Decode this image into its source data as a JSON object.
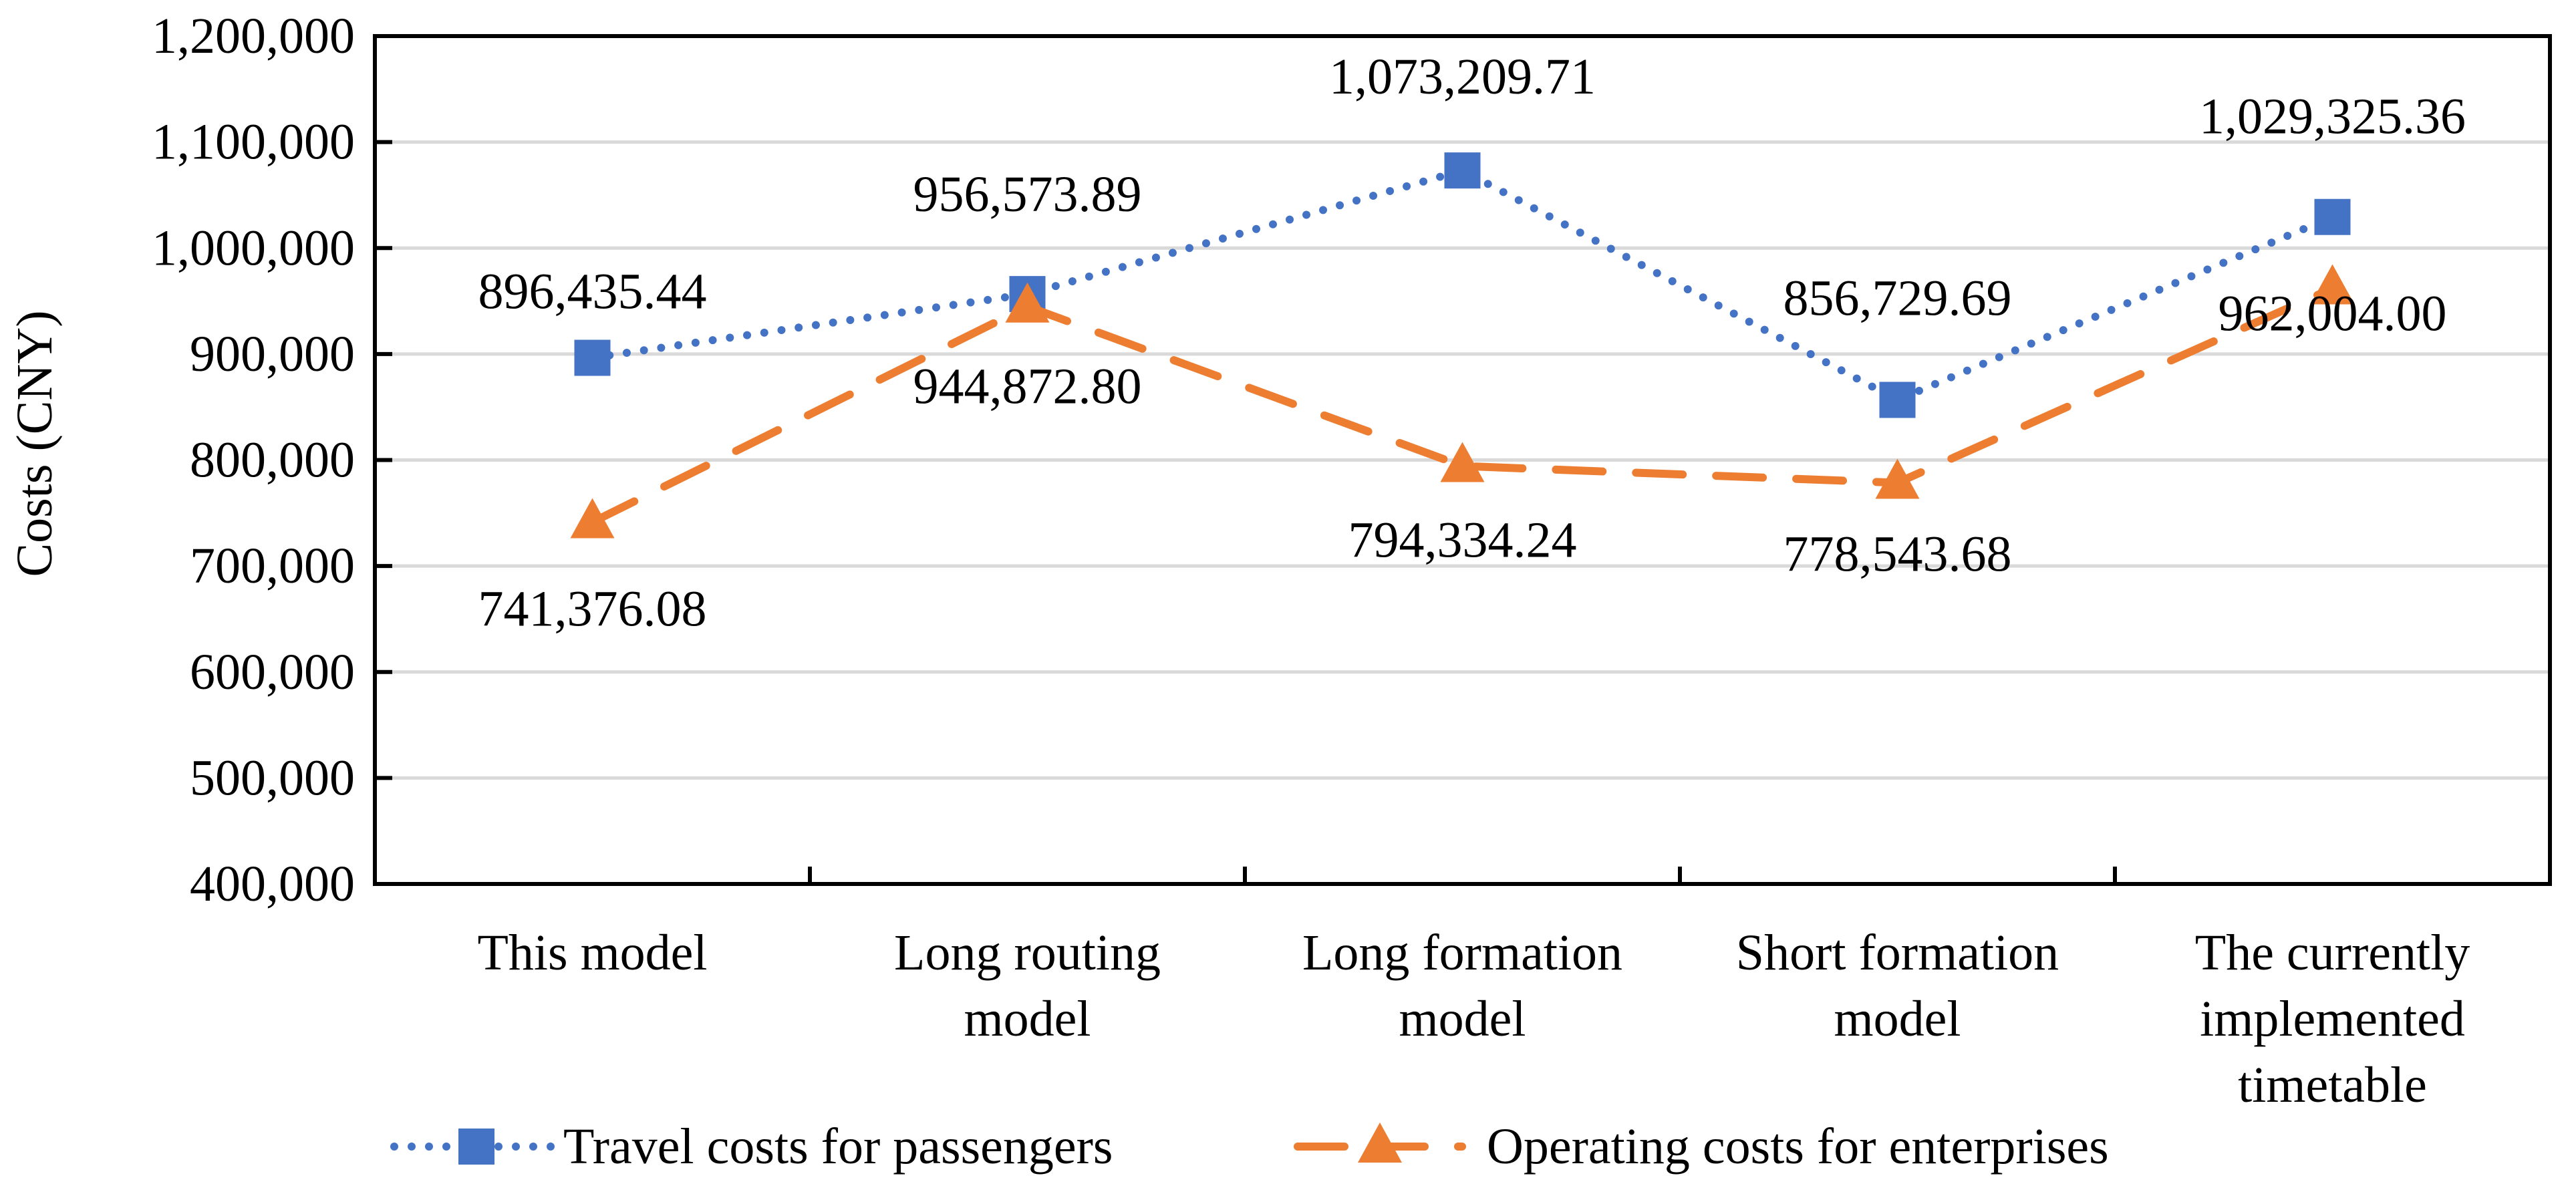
{
  "chart_data": {
    "type": "line",
    "title": "",
    "xlabel": "",
    "ylabel": "Costs (CNY)",
    "ylim": [
      400000,
      1200000
    ],
    "ytick_step": 100000,
    "yticks": [
      "400,000",
      "500,000",
      "600,000",
      "700,000",
      "800,000",
      "900,000",
      "1,000,000",
      "1,100,000",
      "1,200,000"
    ],
    "grid": true,
    "legend_position": "bottom",
    "categories": [
      [
        "This model"
      ],
      [
        "Long routing",
        "model"
      ],
      [
        "Long formation",
        "model"
      ],
      [
        "Short formation",
        "model"
      ],
      [
        "The currently",
        "implemented",
        "timetable"
      ]
    ],
    "series": [
      {
        "name": "Travel costs for passengers",
        "color": "#4472C4",
        "marker": "square",
        "line_style": "dotted",
        "values": [
          896435.44,
          956573.89,
          1073209.71,
          856729.69,
          1029325.36
        ],
        "labels": [
          "896,435.44",
          "956,573.89",
          "1,073,209.71",
          "856,729.69",
          "1,029,325.36"
        ]
      },
      {
        "name": "Operating costs for enterprises",
        "color": "#ED7D31",
        "marker": "triangle",
        "line_style": "dashed",
        "values": [
          741376.08,
          944872.8,
          794334.24,
          778543.68,
          962004.0
        ],
        "labels": [
          "741,376.08",
          "944,872.80",
          "794,334.24",
          "778,543.68",
          "962,004.00"
        ]
      }
    ]
  }
}
